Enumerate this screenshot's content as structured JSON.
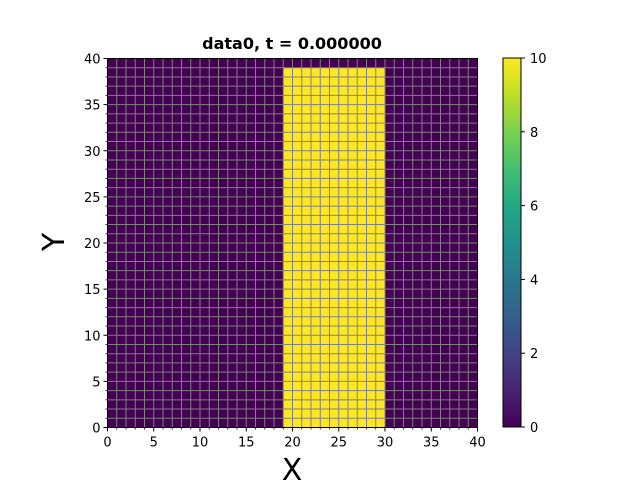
{
  "chart_data": {
    "type": "heatmap",
    "title": "data0, t = 0.000000",
    "xlabel": "X",
    "ylabel": "Y",
    "xlim": [
      0,
      40
    ],
    "ylim": [
      0,
      40
    ],
    "x_ticks": [
      0,
      5,
      10,
      15,
      20,
      25,
      30,
      35,
      40
    ],
    "y_ticks": [
      0,
      5,
      10,
      15,
      20,
      25,
      30,
      35,
      40
    ],
    "grid": "cell edges shown",
    "cell_size": 1,
    "domain_extent": {
      "x": [
        0,
        40
      ],
      "y": [
        0,
        40
      ]
    },
    "background_value": 0,
    "regions": [
      {
        "x": [
          19,
          30
        ],
        "y": [
          0,
          39
        ],
        "value": 10
      }
    ],
    "colorbar": {
      "colormap": "viridis",
      "range": [
        0,
        10
      ],
      "ticks": [
        0,
        2,
        4,
        6,
        8,
        10
      ]
    },
    "colors": {
      "low": "#440154",
      "high": "#fde725",
      "cell_edge": "#808080"
    }
  }
}
